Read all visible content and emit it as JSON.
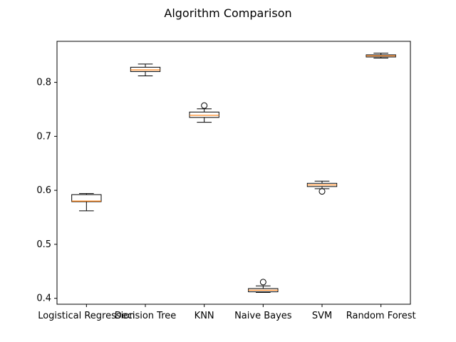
{
  "chart_data": {
    "type": "box",
    "title": "Algorithm Comparison",
    "xlabel": "",
    "ylabel": "",
    "categories": [
      "Logistical Regression",
      "Decision Tree",
      "KNN",
      "Naive Bayes",
      "SVM",
      "Random Forest"
    ],
    "yticks": [
      0.4,
      0.5,
      0.6,
      0.7,
      0.8
    ],
    "ylim": [
      0.389,
      0.876
    ],
    "grid": false,
    "box_fill": "#ffffff",
    "median_color": "#ff7f0e",
    "boxes": [
      {
        "label": "Logistical Regression",
        "whislo": 0.562,
        "q1": 0.579,
        "med": 0.58,
        "q3": 0.592,
        "whishi": 0.594,
        "fliers": []
      },
      {
        "label": "Decision Tree",
        "whislo": 0.812,
        "q1": 0.82,
        "med": 0.823,
        "q3": 0.828,
        "whishi": 0.834,
        "fliers": []
      },
      {
        "label": "KNN",
        "whislo": 0.726,
        "q1": 0.735,
        "med": 0.739,
        "q3": 0.745,
        "whishi": 0.751,
        "fliers": [
          0.757
        ]
      },
      {
        "label": "Naive Bayes",
        "whislo": 0.411,
        "q1": 0.412,
        "med": 0.415,
        "q3": 0.418,
        "whishi": 0.423,
        "fliers": [
          0.43
        ]
      },
      {
        "label": "SVM",
        "whislo": 0.603,
        "q1": 0.607,
        "med": 0.61,
        "q3": 0.613,
        "whishi": 0.617,
        "fliers": [
          0.598
        ]
      },
      {
        "label": "Random Forest",
        "whislo": 0.845,
        "q1": 0.847,
        "med": 0.849,
        "q3": 0.851,
        "whishi": 0.854,
        "fliers": []
      }
    ]
  }
}
